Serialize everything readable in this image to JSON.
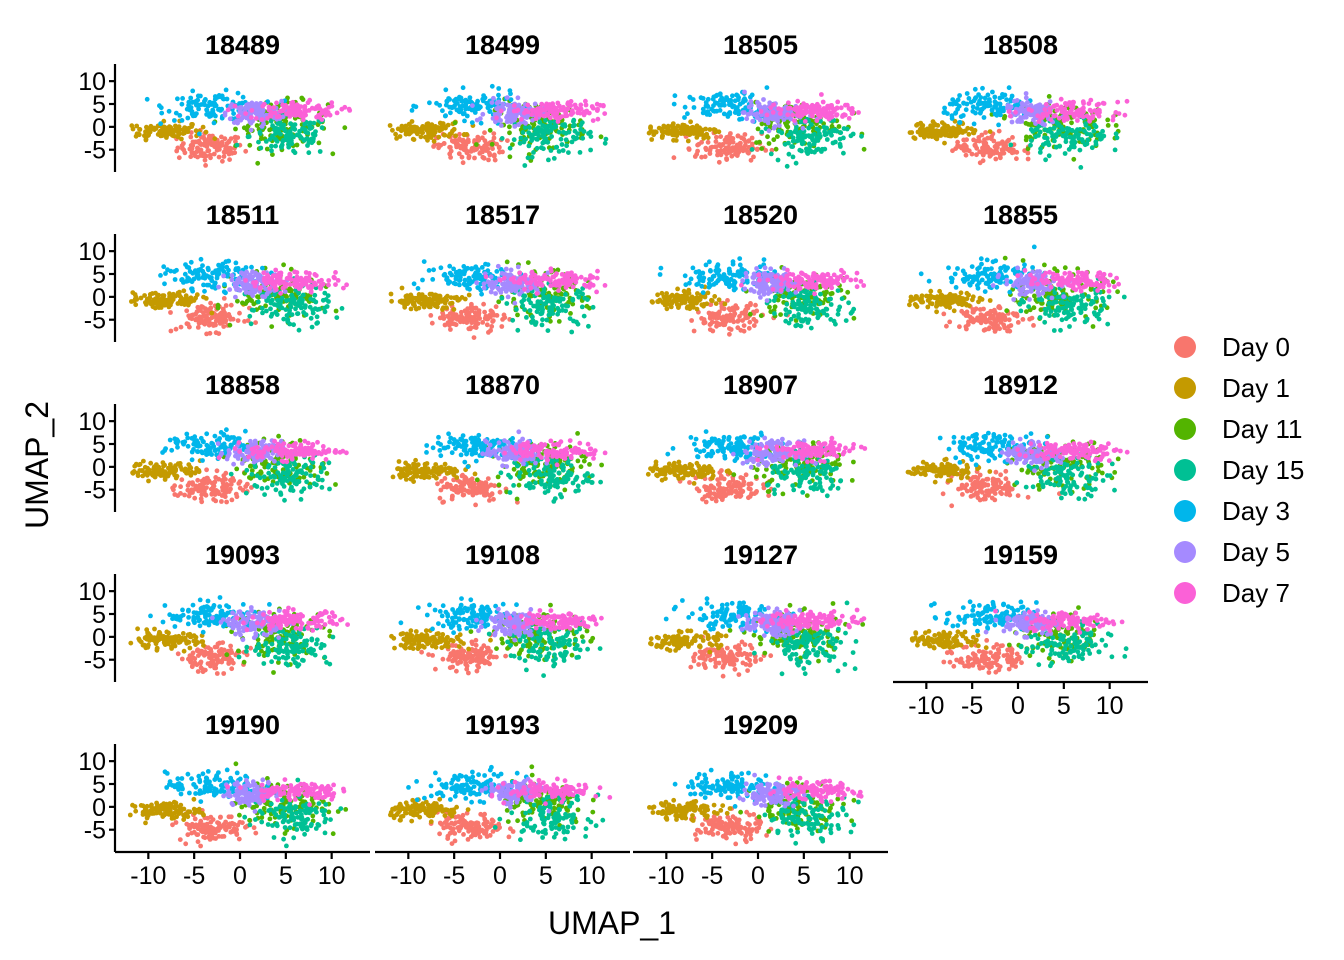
{
  "chart_data": {
    "type": "scatter",
    "panels": [
      "18489",
      "18499",
      "18505",
      "18508",
      "18511",
      "18517",
      "18520",
      "18855",
      "18858",
      "18870",
      "18907",
      "18912",
      "19093",
      "19108",
      "19127",
      "19159",
      "19190",
      "19193",
      "19209"
    ],
    "xlabel": "UMAP_1",
    "ylabel": "UMAP_2",
    "xlim": [
      -12,
      12
    ],
    "ylim": [
      -9,
      12
    ],
    "x_ticks": [
      -10,
      -5,
      0,
      5,
      10
    ],
    "x_tick_labels": [
      "-10",
      "-5",
      "0",
      "5",
      "10"
    ],
    "y_ticks": [
      -5,
      0,
      5,
      10
    ],
    "y_tick_labels": [
      "-5",
      "0",
      "5",
      "10"
    ],
    "grid": false,
    "legend_position": "right",
    "series": [
      {
        "name": "Day 0",
        "color": "#F8766D",
        "center": [
          -3.2,
          -4.5
        ],
        "spread": [
          1.8,
          1.5
        ]
      },
      {
        "name": "Day 1",
        "color": "#C49A00",
        "center": [
          -8.2,
          -0.8
        ],
        "spread": [
          2.0,
          0.9
        ]
      },
      {
        "name": "Day 11",
        "color": "#53B400",
        "center": [
          4.5,
          0.5
        ],
        "spread": [
          2.5,
          2.5
        ]
      },
      {
        "name": "Day 15",
        "color": "#00C094",
        "center": [
          5.5,
          -2.0
        ],
        "spread": [
          2.2,
          2.2
        ]
      },
      {
        "name": "Day 3",
        "color": "#00B6EB",
        "center": [
          -3.0,
          4.5
        ],
        "spread": [
          2.5,
          1.5
        ]
      },
      {
        "name": "Day 5",
        "color": "#A58AFF",
        "center": [
          1.5,
          3.0
        ],
        "spread": [
          1.5,
          1.3
        ]
      },
      {
        "name": "Day 7",
        "color": "#FB61D7",
        "center": [
          6.0,
          3.5
        ],
        "spread": [
          2.5,
          1.0
        ]
      }
    ]
  }
}
